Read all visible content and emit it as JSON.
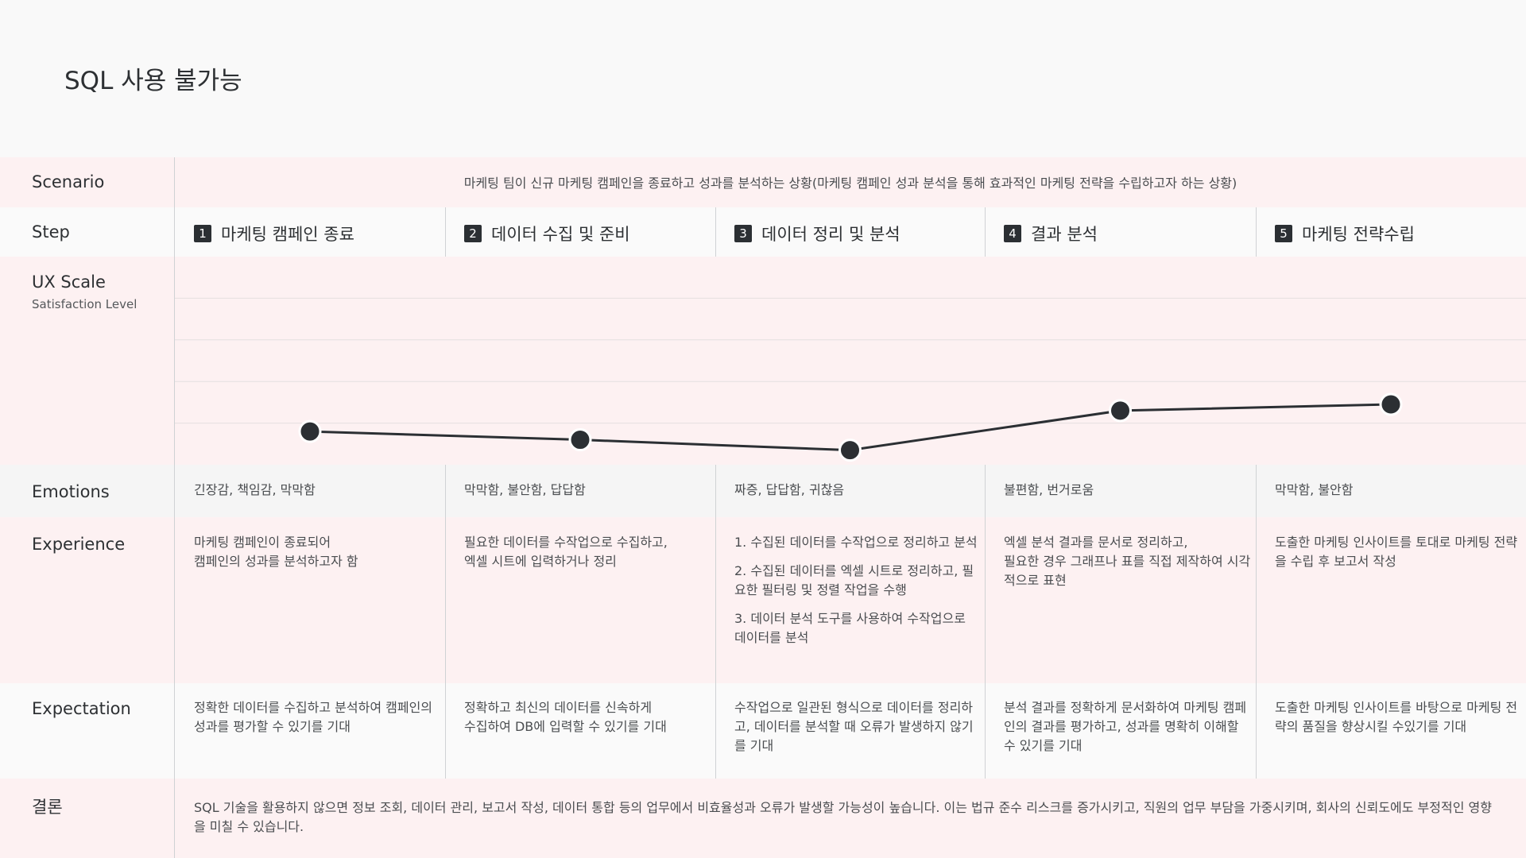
{
  "title": "SQL 사용 불가능",
  "scenario": {
    "label": "Scenario",
    "text": "마케팅 팀이 신규 마케팅 캠페인을 종료하고 성과를 분석하는 상황(마케팅 캠페인 성과 분석을 통해 효과적인 마케팅 전략을 수립하고자 하는 상황)"
  },
  "step": {
    "label": "Step",
    "items": [
      {
        "number": 1,
        "title": "마케팅 캠페인 종료"
      },
      {
        "number": 2,
        "title": "데이터 수집 및 준비"
      },
      {
        "number": 3,
        "title": "데이터 정리 및 분석"
      },
      {
        "number": 4,
        "title": "결과 분석"
      },
      {
        "number": 5,
        "title": "마케팅 전략수립"
      }
    ]
  },
  "ux_scale": {
    "label": "UX Scale",
    "sublabel": "Satisfaction Level",
    "values": [
      0.8,
      0.6,
      0.35,
      1.3,
      1.45
    ],
    "ylim": [
      0,
      5
    ],
    "yticks": [
      1,
      2,
      3,
      4
    ]
  },
  "emotions": {
    "label": "Emotions",
    "values": [
      "긴장감, 책임감, 막막함",
      "막막함, 불안함, 답답함",
      "짜증, 답답함, 귀찮음",
      "불편함, 번거로움",
      "막막함, 불안함"
    ]
  },
  "experience": {
    "label": "Experience",
    "values": [
      [
        "마케팅 캠페인이 종료되어\n캠페인의 성과를 분석하고자 함"
      ],
      [
        "필요한 데이터를 수작업으로 수집하고,\n엑셀 시트에 입력하거나 정리"
      ],
      [
        "1. 수집된 데이터를 수작업으로 정리하고 분석",
        "2. 수집된 데이터를 엑셀 시트로 정리하고, 필요한 필터링 및 정렬 작업을 수행",
        "3. 데이터 분석 도구를 사용하여 수작업으로 데이터를 분석"
      ],
      [
        "엑셀 분석 결과를 문서로 정리하고,\n필요한 경우 그래프나 표를 직접 제작하여 시각적으로 표현"
      ],
      [
        "도출한 마케팅 인사이트를 토대로 마케팅 전략을 수립 후 보고서 작성"
      ]
    ]
  },
  "expectation": {
    "label": "Expectation",
    "values": [
      "정확한 데이터를 수집하고 분석하여 캠페인의 성과를 평가할 수 있기를 기대",
      "정확하고 최신의 데이터를 신속하게\n수집하여 DB에 입력할 수 있기를 기대",
      "수작업으로 일관된 형식으로 데이터를 정리하고, 데이터를 분석할 때 오류가 발생하지 않기를 기대",
      "분석 결과를 정확하게 문서화하여 마케팅 캠페인의 결과를 평가하고, 성과를 명확히 이해할 수 있기를 기대",
      "도출한 마케팅 인사이트를 바탕으로  마케팅 전략의 품질을 향상시킬 수있기를 기대"
    ]
  },
  "conclusion": {
    "label": "결론",
    "text": "SQL 기술을 활용하지 않으면 정보 조회, 데이터 관리, 보고서 작성, 데이터 통합 등의 업무에서 비효율성과 오류가 발생할 가능성이 높습니다. 이는 법규 준수 리스크를 증가시키고, 직원의 업무 부담을 가중시키며, 회사의 신뢰도에도 부정적인 영향을 미칠 수 있습니다."
  }
}
